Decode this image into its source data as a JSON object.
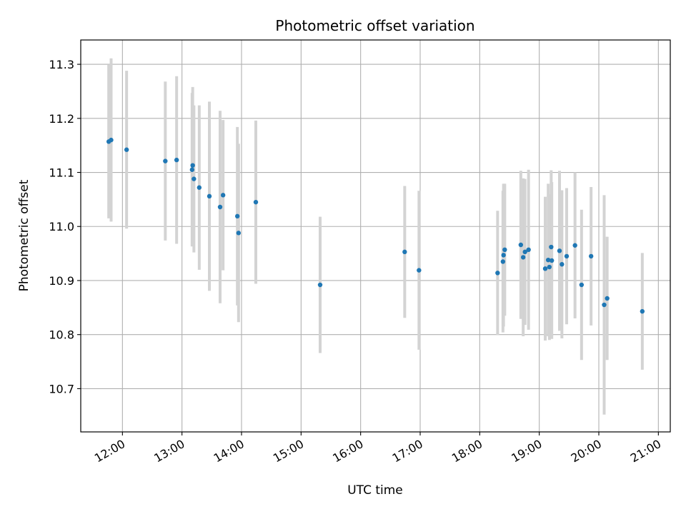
{
  "chart_data": {
    "type": "scatter",
    "title": "Photometric offset variation",
    "xlabel": "UTC time",
    "ylabel": "Photometric offset",
    "x_unit": "hours UTC",
    "xlim": [
      11.3,
      21.2
    ],
    "ylim": [
      10.62,
      11.345
    ],
    "x_ticks": [
      {
        "value": 12,
        "label": "12:00"
      },
      {
        "value": 13,
        "label": "13:00"
      },
      {
        "value": 14,
        "label": "14:00"
      },
      {
        "value": 15,
        "label": "15:00"
      },
      {
        "value": 16,
        "label": "16:00"
      },
      {
        "value": 17,
        "label": "17:00"
      },
      {
        "value": 18,
        "label": "18:00"
      },
      {
        "value": 19,
        "label": "19:00"
      },
      {
        "value": 20,
        "label": "20:00"
      },
      {
        "value": 21,
        "label": "21:00"
      }
    ],
    "y_ticks": [
      {
        "value": 10.7,
        "label": "10.7"
      },
      {
        "value": 10.8,
        "label": "10.8"
      },
      {
        "value": 10.9,
        "label": "10.9"
      },
      {
        "value": 11.0,
        "label": "11.0"
      },
      {
        "value": 11.1,
        "label": "11.1"
      },
      {
        "value": 11.2,
        "label": "11.2"
      },
      {
        "value": 11.3,
        "label": "11.3"
      }
    ],
    "grid": true,
    "point_color": "#1f77b4",
    "errorbar_color": "#d3d3d3",
    "points": [
      {
        "x": 11.77,
        "y": 11.157,
        "yerr": 0.142
      },
      {
        "x": 11.81,
        "y": 11.16,
        "yerr": 0.151
      },
      {
        "x": 12.07,
        "y": 11.142,
        "yerr": 0.146
      },
      {
        "x": 12.72,
        "y": 11.121,
        "yerr": 0.147
      },
      {
        "x": 12.91,
        "y": 11.123,
        "yerr": 0.155
      },
      {
        "x": 13.17,
        "y": 11.105,
        "yerr": 0.142
      },
      {
        "x": 13.18,
        "y": 11.113,
        "yerr": 0.145
      },
      {
        "x": 13.2,
        "y": 11.088,
        "yerr": 0.136
      },
      {
        "x": 13.29,
        "y": 11.072,
        "yerr": 0.152
      },
      {
        "x": 13.46,
        "y": 11.056,
        "yerr": 0.175
      },
      {
        "x": 13.64,
        "y": 11.036,
        "yerr": 0.178
      },
      {
        "x": 13.69,
        "y": 11.058,
        "yerr": 0.139
      },
      {
        "x": 13.93,
        "y": 11.019,
        "yerr": 0.165
      },
      {
        "x": 13.95,
        "y": 10.988,
        "yerr": 0.165
      },
      {
        "x": 14.24,
        "y": 11.045,
        "yerr": 0.151
      },
      {
        "x": 15.32,
        "y": 10.892,
        "yerr": 0.126
      },
      {
        "x": 16.74,
        "y": 10.953,
        "yerr": 0.122
      },
      {
        "x": 16.98,
        "y": 10.919,
        "yerr": 0.147
      },
      {
        "x": 18.3,
        "y": 10.914,
        "yerr": 0.115
      },
      {
        "x": 18.39,
        "y": 10.935,
        "yerr": 0.131
      },
      {
        "x": 18.4,
        "y": 10.947,
        "yerr": 0.132
      },
      {
        "x": 18.42,
        "y": 10.957,
        "yerr": 0.122
      },
      {
        "x": 18.69,
        "y": 10.966,
        "yerr": 0.137
      },
      {
        "x": 18.73,
        "y": 10.943,
        "yerr": 0.146
      },
      {
        "x": 18.76,
        "y": 10.953,
        "yerr": 0.135
      },
      {
        "x": 18.82,
        "y": 10.957,
        "yerr": 0.148
      },
      {
        "x": 19.1,
        "y": 10.922,
        "yerr": 0.133
      },
      {
        "x": 19.15,
        "y": 10.938,
        "yerr": 0.141
      },
      {
        "x": 19.17,
        "y": 10.925,
        "yerr": 0.135
      },
      {
        "x": 19.2,
        "y": 10.962,
        "yerr": 0.142
      },
      {
        "x": 19.21,
        "y": 10.937,
        "yerr": 0.145
      },
      {
        "x": 19.34,
        "y": 10.955,
        "yerr": 0.148
      },
      {
        "x": 19.38,
        "y": 10.93,
        "yerr": 0.137
      },
      {
        "x": 19.46,
        "y": 10.945,
        "yerr": 0.126
      },
      {
        "x": 19.6,
        "y": 10.965,
        "yerr": 0.135
      },
      {
        "x": 19.71,
        "y": 10.892,
        "yerr": 0.139
      },
      {
        "x": 19.87,
        "y": 10.945,
        "yerr": 0.128
      },
      {
        "x": 20.09,
        "y": 10.855,
        "yerr": 0.203
      },
      {
        "x": 20.14,
        "y": 10.867,
        "yerr": 0.114
      },
      {
        "x": 20.73,
        "y": 10.843,
        "yerr": 0.108
      }
    ]
  }
}
